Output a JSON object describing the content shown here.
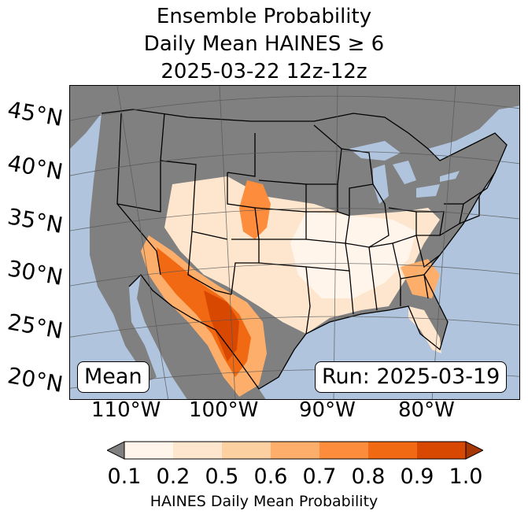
{
  "title": {
    "line1": "Ensemble Probability",
    "line2": "Daily Mean HAINES ≥ 6",
    "line3": "2025-03-22 12z-12z"
  },
  "map": {
    "ocean_color": "#b0c4de",
    "land_masked_color": "#808080",
    "boundary_color": "#000000",
    "lat_labels": [
      "45°N",
      "40°N",
      "35°N",
      "30°N",
      "25°N",
      "20°N"
    ],
    "lon_labels": [
      "110°W",
      "100°W",
      "90°W",
      "80°W"
    ],
    "stat_label": "Mean",
    "run_label": "Run: 2025-03-19"
  },
  "colorbar": {
    "label": "HAINES Daily Mean Probability",
    "ticks": [
      "0.1",
      "0.2",
      "0.5",
      "0.6",
      "0.7",
      "0.8",
      "0.9",
      "1.0"
    ],
    "colors": [
      "#fff5eb",
      "#fee6ce",
      "#fdd0a2",
      "#fdae6b",
      "#fd8d3c",
      "#f16913",
      "#d94801",
      "#a63603"
    ],
    "under_color": "#808080"
  }
}
